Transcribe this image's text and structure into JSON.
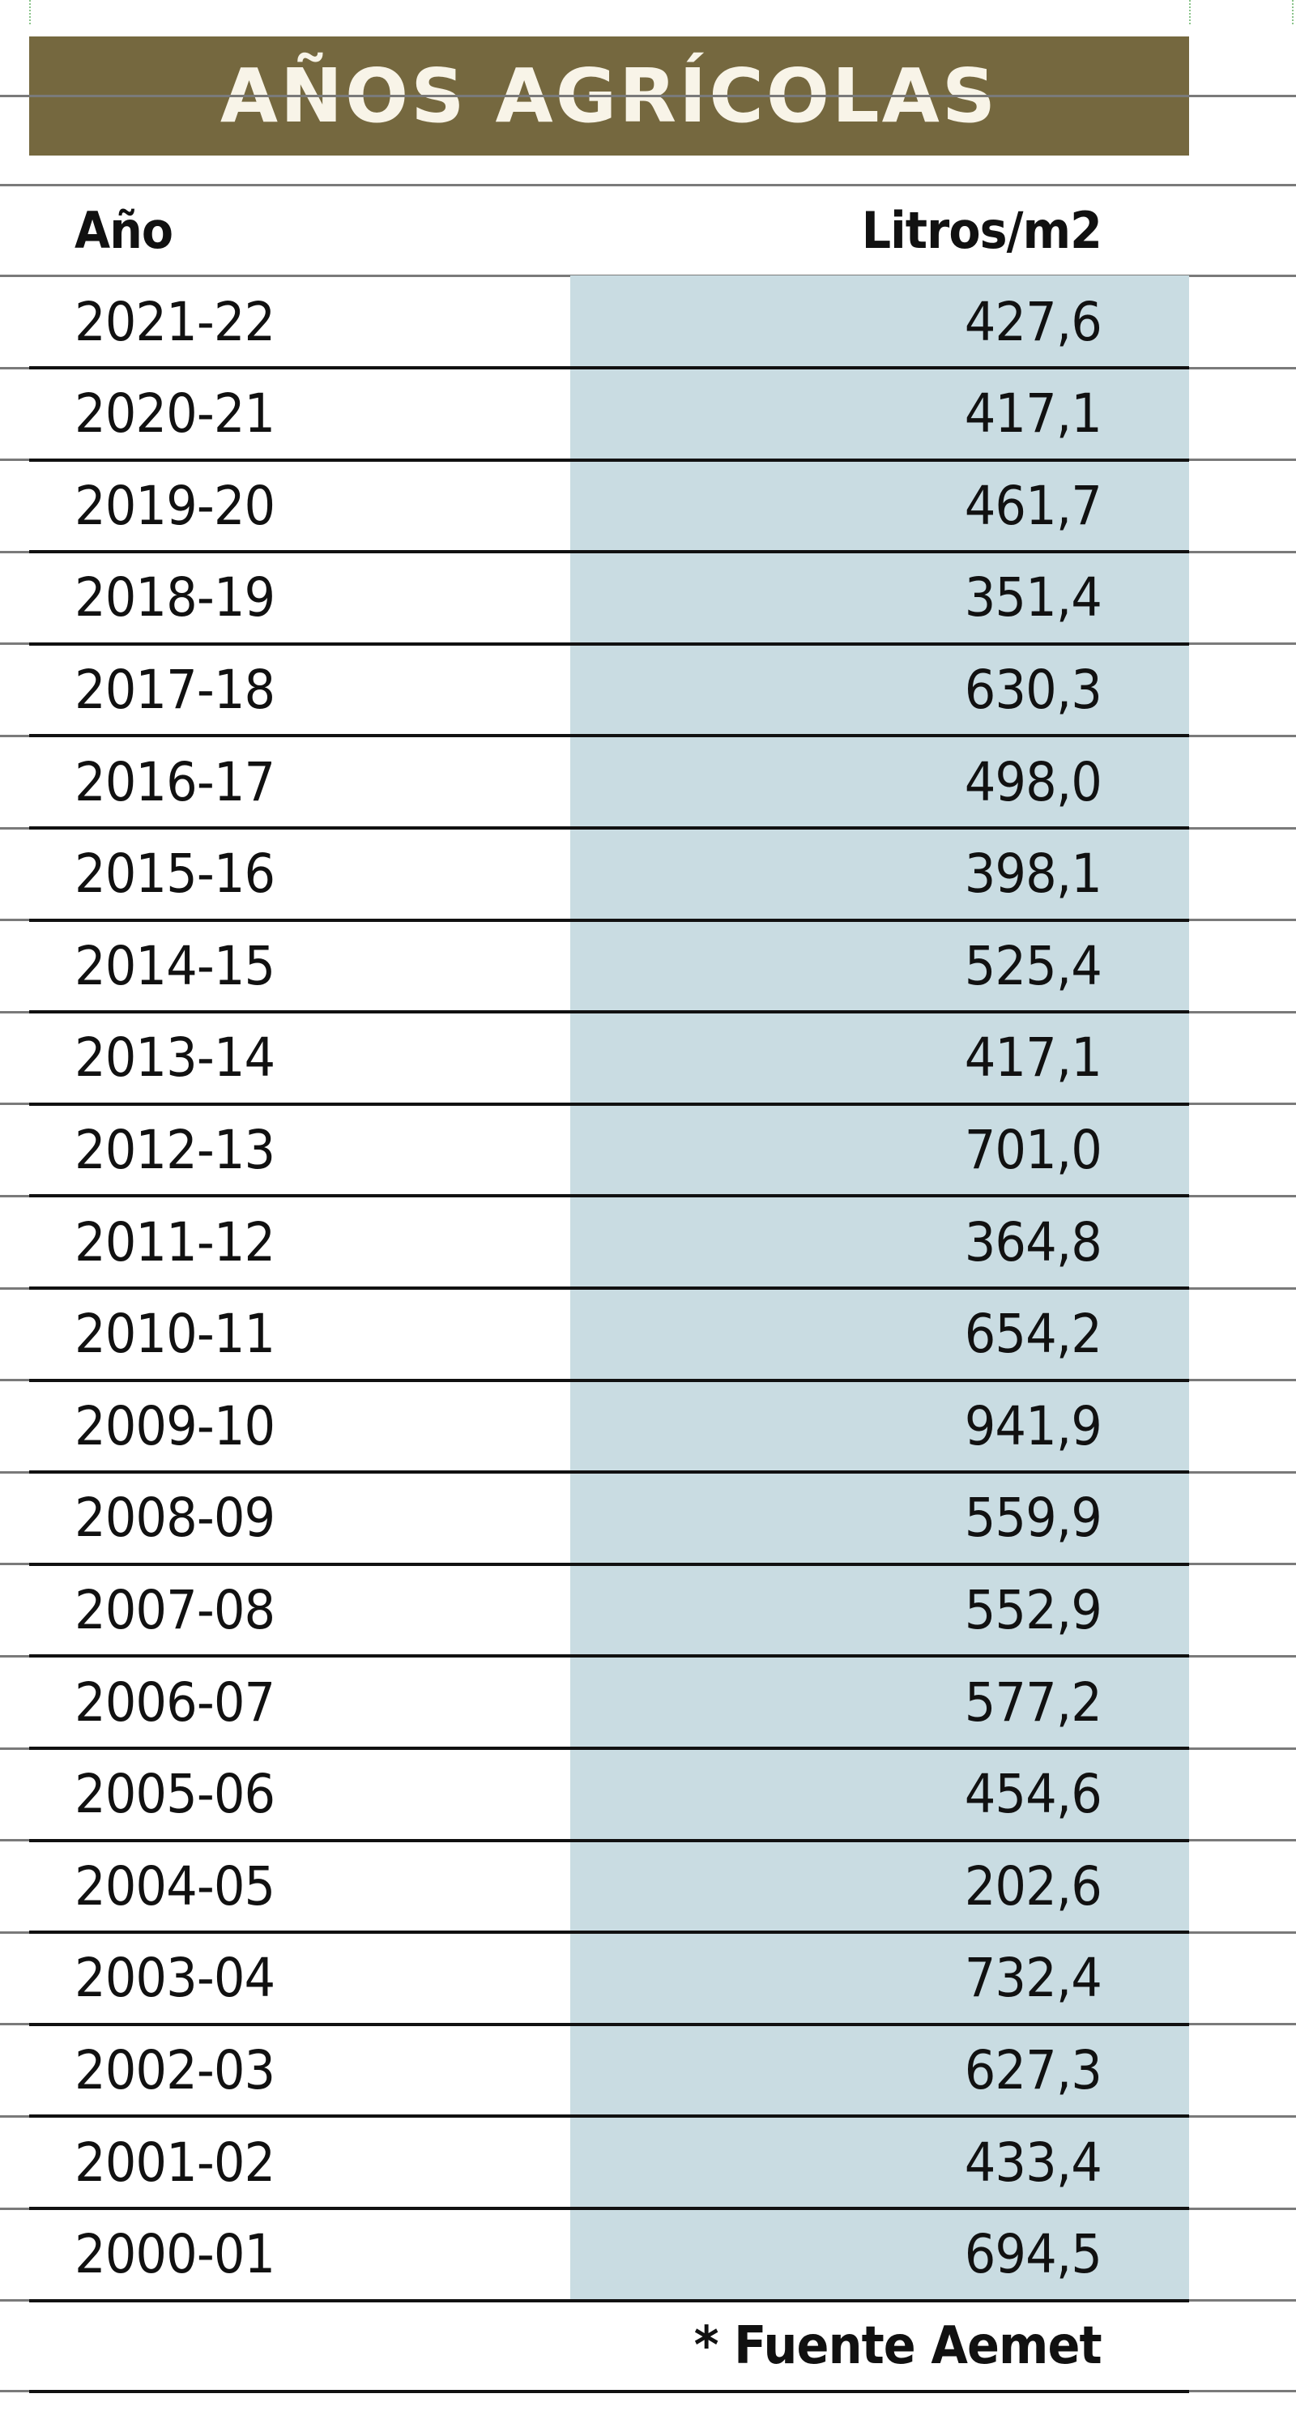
{
  "title": "AÑOS AGRÍCOLAS",
  "columns": {
    "year": "Año",
    "value": "Litros/m2"
  },
  "rows": [
    {
      "year": "2021-22",
      "value": "427,6"
    },
    {
      "year": "2020-21",
      "value": "417,1"
    },
    {
      "year": "2019-20",
      "value": "461,7"
    },
    {
      "year": "2018-19",
      "value": "351,4"
    },
    {
      "year": "2017-18",
      "value": "630,3"
    },
    {
      "year": "2016-17",
      "value": "498,0"
    },
    {
      "year": "2015-16",
      "value": "398,1"
    },
    {
      "year": "2014-15",
      "value": "525,4"
    },
    {
      "year": "2013-14",
      "value": "417,1"
    },
    {
      "year": "2012-13",
      "value": "701,0"
    },
    {
      "year": "2011-12",
      "value": "364,8"
    },
    {
      "year": "2010-11",
      "value": "654,2"
    },
    {
      "year": "2009-10",
      "value": "941,9"
    },
    {
      "year": "2008-09",
      "value": "559,9"
    },
    {
      "year": "2007-08",
      "value": "552,9"
    },
    {
      "year": "2006-07",
      "value": "577,2"
    },
    {
      "year": "2005-06",
      "value": "454,6"
    },
    {
      "year": "2004-05",
      "value": "202,6"
    },
    {
      "year": "2003-04",
      "value": "732,4"
    },
    {
      "year": "2002-03",
      "value": "627,3"
    },
    {
      "year": "2001-02",
      "value": "433,4"
    },
    {
      "year": "2000-01",
      "value": "694,5"
    }
  ],
  "footnote": "* Fuente Aemet",
  "colors": {
    "title_bg": "#75683f",
    "title_text": "#f8f4e8",
    "value_column_bg": "#c9dce2"
  }
}
